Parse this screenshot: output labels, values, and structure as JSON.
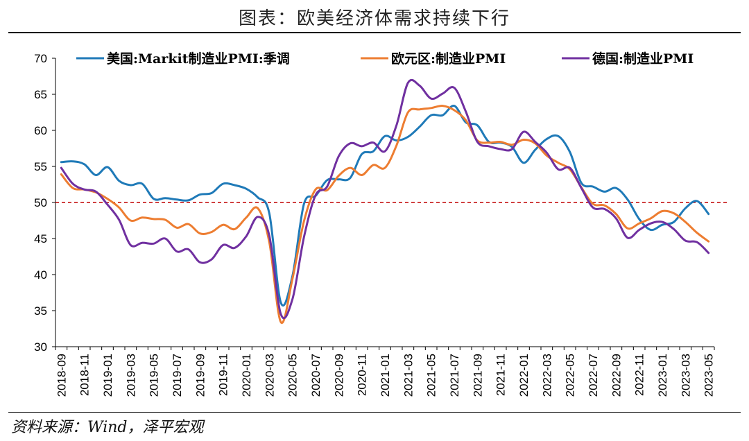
{
  "title": "图表：欧美经济体需求持续下行",
  "source": "资料来源：Wind，泽平宏观",
  "chart_data": {
    "type": "line",
    "ylim": [
      30,
      70
    ],
    "y_ticks": [
      30,
      35,
      40,
      45,
      50,
      55,
      60,
      65,
      70
    ],
    "x_tick_labels": [
      "2018-09",
      "2018-11",
      "2019-01",
      "2019-03",
      "2019-05",
      "2019-07",
      "2019-09",
      "2019-11",
      "2020-01",
      "2020-03",
      "2020-05",
      "2020-07",
      "2020-09",
      "2020-11",
      "2021-01",
      "2021-03",
      "2021-05",
      "2021-07",
      "2021-09",
      "2021-11",
      "2022-01",
      "2022-03",
      "2022-05",
      "2022-07",
      "2022-09",
      "2022-11",
      "2023-01",
      "2023-03",
      "2023-05"
    ],
    "x": [
      "2018-09",
      "2018-10",
      "2018-11",
      "2018-12",
      "2019-01",
      "2019-02",
      "2019-03",
      "2019-04",
      "2019-05",
      "2019-06",
      "2019-07",
      "2019-08",
      "2019-09",
      "2019-10",
      "2019-11",
      "2019-12",
      "2020-01",
      "2020-02",
      "2020-03",
      "2020-04",
      "2020-05",
      "2020-06",
      "2020-07",
      "2020-08",
      "2020-09",
      "2020-10",
      "2020-11",
      "2020-12",
      "2021-01",
      "2021-02",
      "2021-03",
      "2021-04",
      "2021-05",
      "2021-06",
      "2021-07",
      "2021-08",
      "2021-09",
      "2021-10",
      "2021-11",
      "2021-12",
      "2022-01",
      "2022-02",
      "2022-03",
      "2022-04",
      "2022-05",
      "2022-06",
      "2022-07",
      "2022-08",
      "2022-09",
      "2022-10",
      "2022-11",
      "2022-12",
      "2023-01",
      "2023-02",
      "2023-03",
      "2023-04",
      "2023-05"
    ],
    "reference_line": {
      "y": 50,
      "color": "#c00000",
      "style": "dashed"
    },
    "legend_position": "top",
    "series": [
      {
        "name": "美国:Markit制造业PMI:季调",
        "color": "#1f7ab8",
        "values": [
          55.6,
          55.7,
          55.3,
          53.8,
          54.9,
          53.0,
          52.4,
          52.6,
          50.5,
          50.6,
          50.4,
          50.3,
          51.1,
          51.3,
          52.6,
          52.4,
          51.9,
          50.7,
          48.5,
          36.1,
          39.8,
          49.8,
          50.9,
          53.1,
          53.2,
          53.4,
          56.7,
          57.1,
          59.2,
          58.6,
          59.1,
          60.5,
          62.1,
          62.1,
          63.4,
          61.1,
          60.7,
          58.4,
          58.3,
          57.7,
          55.5,
          57.3,
          58.8,
          59.2,
          57.0,
          52.7,
          52.2,
          51.5,
          52.0,
          50.4,
          47.7,
          46.2,
          46.9,
          47.3,
          49.2,
          50.2,
          48.4
        ]
      },
      {
        "name": "欧元区:制造业PMI",
        "color": "#ed7d31",
        "values": [
          53.9,
          52.0,
          51.8,
          51.4,
          50.5,
          49.3,
          47.5,
          47.9,
          47.7,
          47.6,
          46.5,
          47.0,
          45.7,
          45.9,
          46.9,
          46.3,
          47.9,
          49.2,
          44.5,
          33.4,
          39.4,
          47.4,
          51.8,
          51.7,
          53.7,
          54.8,
          53.8,
          55.2,
          54.8,
          57.9,
          62.5,
          62.9,
          63.1,
          63.4,
          62.8,
          61.4,
          58.6,
          58.3,
          58.4,
          58.0,
          58.7,
          58.2,
          56.5,
          55.5,
          54.6,
          52.1,
          49.8,
          49.6,
          48.4,
          46.4,
          47.1,
          47.8,
          48.8,
          48.5,
          47.3,
          45.8,
          44.6
        ]
      },
      {
        "name": "德国:制造业PMI",
        "color": "#7030a0",
        "values": [
          54.8,
          52.6,
          51.8,
          51.5,
          49.7,
          47.6,
          44.1,
          44.4,
          44.3,
          45.0,
          43.2,
          43.5,
          41.7,
          42.1,
          44.1,
          43.7,
          45.3,
          48.0,
          45.4,
          34.5,
          36.6,
          45.2,
          51.0,
          52.2,
          56.4,
          58.2,
          57.8,
          58.3,
          57.1,
          60.7,
          66.6,
          66.2,
          64.4,
          65.1,
          65.9,
          62.6,
          58.4,
          57.8,
          57.4,
          57.4,
          59.8,
          58.4,
          56.9,
          54.6,
          54.8,
          52.0,
          49.3,
          49.1,
          47.8,
          45.1,
          46.2,
          47.1,
          47.3,
          46.3,
          44.7,
          44.5,
          43.0
        ]
      }
    ]
  }
}
